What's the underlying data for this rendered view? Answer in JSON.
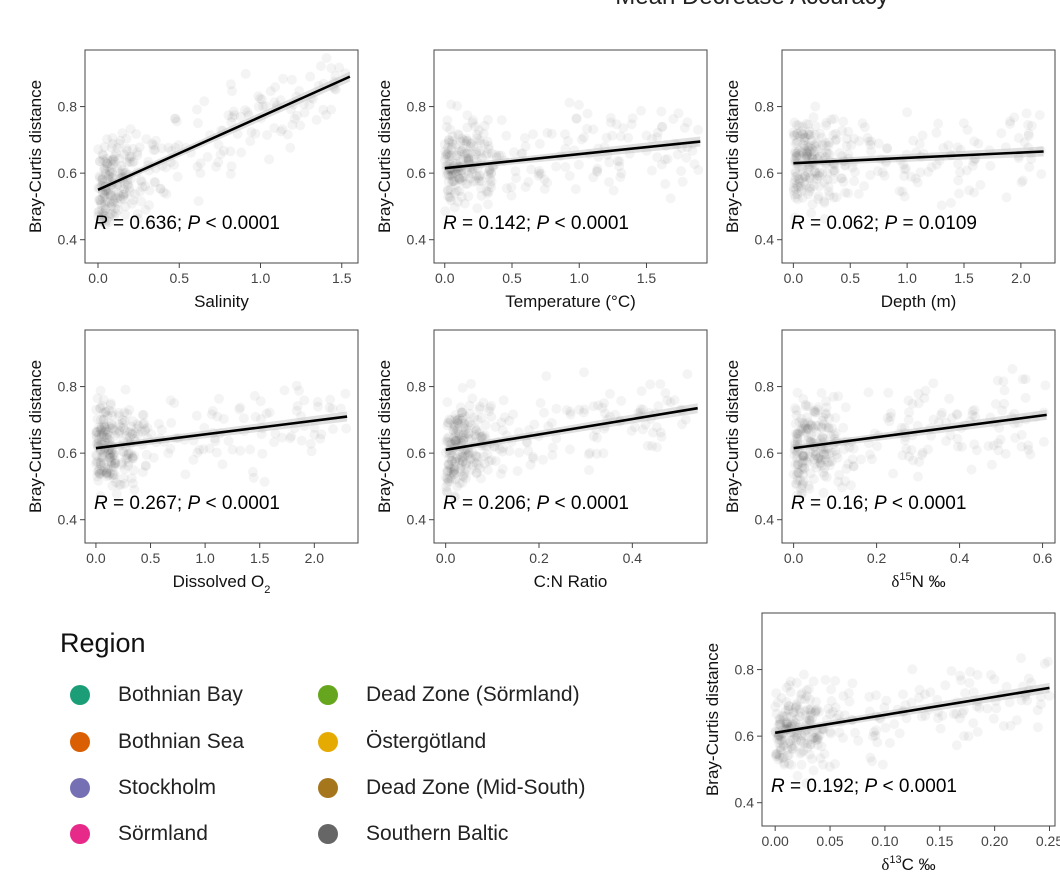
{
  "figure_title": "Mean Decrease Accuracy",
  "chart_data": [
    {
      "type": "scatter",
      "id": "salinity",
      "xlabel": "Salinity",
      "ylabel": "Bray-Curtis distance",
      "xlim": [
        -0.08,
        1.6
      ],
      "ylim": [
        0.33,
        0.97
      ],
      "xticks": [
        0.0,
        0.5,
        1.0,
        1.5
      ],
      "xtick_labels": [
        "0.0",
        "0.5",
        "1.0",
        "1.5"
      ],
      "yticks": [
        0.4,
        0.6,
        0.8
      ],
      "ytick_labels": [
        "0.4",
        "0.6",
        "0.8"
      ],
      "fit_line": {
        "x": [
          0.0,
          1.55
        ],
        "y": [
          0.55,
          0.89
        ]
      },
      "stat_R": "0.636",
      "stat_P": "< 0.0001"
    },
    {
      "type": "scatter",
      "id": "temperature",
      "xlabel": "Temperature (°C)",
      "ylabel": "Bray-Curtis distance",
      "xlim": [
        -0.08,
        1.95
      ],
      "ylim": [
        0.33,
        0.97
      ],
      "xticks": [
        0.0,
        0.5,
        1.0,
        1.5
      ],
      "xtick_labels": [
        "0.0",
        "0.5",
        "1.0",
        "1.5"
      ],
      "yticks": [
        0.4,
        0.6,
        0.8
      ],
      "ytick_labels": [
        "0.4",
        "0.6",
        "0.8"
      ],
      "fit_line": {
        "x": [
          0.0,
          1.9
        ],
        "y": [
          0.615,
          0.695
        ]
      },
      "stat_R": "0.142",
      "stat_P": "< 0.0001"
    },
    {
      "type": "scatter",
      "id": "depth",
      "xlabel": "Depth (m)",
      "ylabel": "Bray-Curtis distance",
      "xlim": [
        -0.1,
        2.3
      ],
      "ylim": [
        0.33,
        0.97
      ],
      "xticks": [
        0.0,
        0.5,
        1.0,
        1.5,
        2.0
      ],
      "xtick_labels": [
        "0.0",
        "0.5",
        "1.0",
        "1.5",
        "2.0"
      ],
      "yticks": [
        0.4,
        0.6,
        0.8
      ],
      "ytick_labels": [
        "0.4",
        "0.6",
        "0.8"
      ],
      "fit_line": {
        "x": [
          0.0,
          2.2
        ],
        "y": [
          0.63,
          0.665
        ]
      },
      "stat_R": "0.062",
      "stat_P": "= 0.0109"
    },
    {
      "type": "scatter",
      "id": "dissolved-o2",
      "xlabel": "Dissolved O",
      "xlabel_sub": "2",
      "ylabel": "Bray-Curtis distance",
      "xlim": [
        -0.1,
        2.4
      ],
      "ylim": [
        0.33,
        0.97
      ],
      "xticks": [
        0.0,
        0.5,
        1.0,
        1.5,
        2.0
      ],
      "xtick_labels": [
        "0.0",
        "0.5",
        "1.0",
        "1.5",
        "2.0"
      ],
      "yticks": [
        0.4,
        0.6,
        0.8
      ],
      "ytick_labels": [
        "0.4",
        "0.6",
        "0.8"
      ],
      "fit_line": {
        "x": [
          0.0,
          2.3
        ],
        "y": [
          0.615,
          0.71
        ]
      },
      "stat_R": "0.267",
      "stat_P": "< 0.0001"
    },
    {
      "type": "scatter",
      "id": "cn-ratio",
      "xlabel": "C:N Ratio",
      "ylabel": "Bray-Curtis distance",
      "xlim": [
        -0.025,
        0.56
      ],
      "ylim": [
        0.33,
        0.97
      ],
      "xticks": [
        0.0,
        0.2,
        0.4
      ],
      "xtick_labels": [
        "0.0",
        "0.2",
        "0.4"
      ],
      "yticks": [
        0.4,
        0.6,
        0.8
      ],
      "ytick_labels": [
        "0.4",
        "0.6",
        "0.8"
      ],
      "fit_line": {
        "x": [
          0.0,
          0.54
        ],
        "y": [
          0.61,
          0.735
        ]
      },
      "stat_R": "0.206",
      "stat_P": "< 0.0001"
    },
    {
      "type": "scatter",
      "id": "d15n",
      "xlabel_prefix": "δ",
      "xlabel_sup": "15",
      "xlabel": "N ‰",
      "ylabel": "Bray-Curtis distance",
      "xlim": [
        -0.028,
        0.63
      ],
      "ylim": [
        0.33,
        0.97
      ],
      "xticks": [
        0.0,
        0.2,
        0.4,
        0.6
      ],
      "xtick_labels": [
        "0.0",
        "0.2",
        "0.4",
        "0.6"
      ],
      "yticks": [
        0.4,
        0.6,
        0.8
      ],
      "ytick_labels": [
        "0.4",
        "0.6",
        "0.8"
      ],
      "fit_line": {
        "x": [
          0.0,
          0.61
        ],
        "y": [
          0.615,
          0.715
        ]
      },
      "stat_R": "0.16",
      "stat_P": "< 0.0001"
    },
    {
      "type": "scatter",
      "id": "d13c",
      "xlabel_prefix": "δ",
      "xlabel_sup": "13",
      "xlabel": "C ‰",
      "ylabel": "Bray-Curtis distance",
      "xlim": [
        -0.012,
        0.255
      ],
      "ylim": [
        0.33,
        0.97
      ],
      "xticks": [
        0.0,
        0.05,
        0.1,
        0.15,
        0.2,
        0.25
      ],
      "xtick_labels": [
        "0.00",
        "0.05",
        "0.10",
        "0.15",
        "0.20",
        "0.25"
      ],
      "yticks": [
        0.4,
        0.6,
        0.8
      ],
      "ytick_labels": [
        "0.4",
        "0.6",
        "0.8"
      ],
      "fit_line": {
        "x": [
          0.0,
          0.25
        ],
        "y": [
          0.61,
          0.745
        ]
      },
      "stat_R": "0.192",
      "stat_P": "< 0.0001"
    }
  ],
  "legend": {
    "title": "Region",
    "items": [
      {
        "label": "Bothnian Bay",
        "color": "#1b9e77"
      },
      {
        "label": "Bothnian Sea",
        "color": "#d95f02"
      },
      {
        "label": "Stockholm",
        "color": "#7570b3"
      },
      {
        "label": "Sörmland",
        "color": "#e7298a"
      },
      {
        "label": "Dead Zone (Sörmland)",
        "color": "#66a61e"
      },
      {
        "label": "Östergötland",
        "color": "#e6ab02"
      },
      {
        "label": "Dead Zone (Mid-South)",
        "color": "#a6761d"
      },
      {
        "label": "Southern Baltic",
        "color": "#666666"
      }
    ]
  }
}
